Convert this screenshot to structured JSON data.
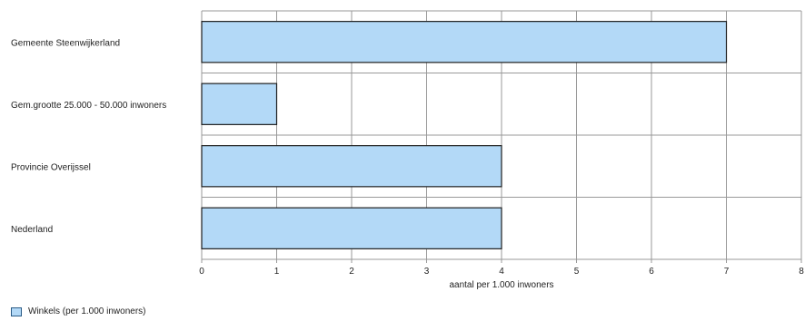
{
  "chart_data": {
    "type": "bar",
    "orientation": "horizontal",
    "categories": [
      "Gemeente Steenwijkerland",
      "Gem.grootte 25.000 - 50.000 inwoners",
      "Provincie Overijssel",
      "Nederland"
    ],
    "series": [
      {
        "name": "Winkels (per 1.000 inwoners)",
        "values": [
          7,
          1,
          4,
          4
        ]
      }
    ],
    "xlabel": "aantal per 1.000 inwoners",
    "xlim": [
      0,
      8
    ],
    "xticks": [
      "0",
      "1",
      "2",
      "3",
      "4",
      "5",
      "6",
      "7",
      "8"
    ],
    "grid": true,
    "legend_position": "bottom-left",
    "colors": {
      "bar_fill": "#b3d9f7",
      "bar_stroke": "#1f1f1f",
      "grid": "#999999"
    }
  }
}
